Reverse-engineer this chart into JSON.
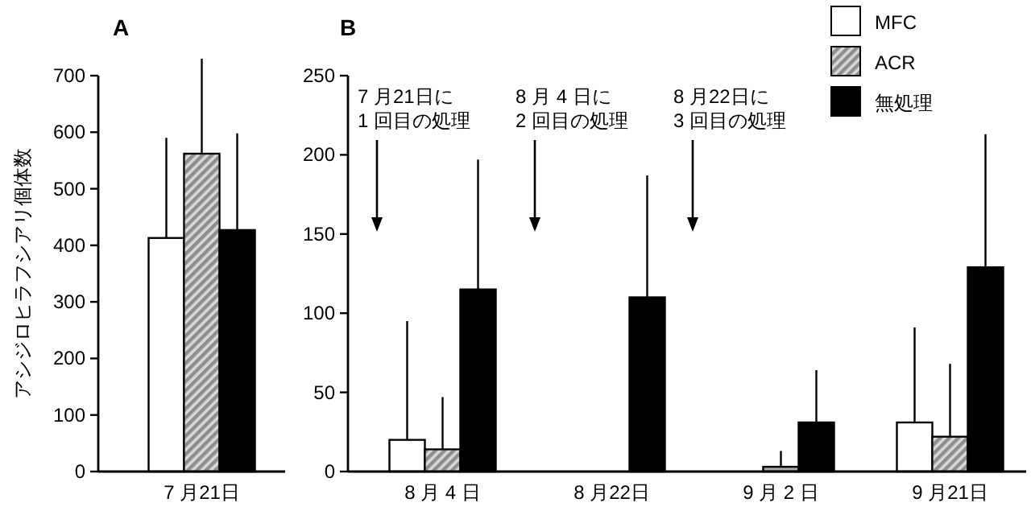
{
  "chart_data": [
    {
      "type": "bar",
      "title": "A",
      "ylabel": "アシジロヒラフシアリ個体数",
      "categories": [
        "7 月21日"
      ],
      "ylim": [
        0,
        700
      ],
      "yticks": [
        0,
        100,
        200,
        300,
        400,
        500,
        600,
        700
      ],
      "grid": false,
      "legend": false,
      "series": [
        {
          "color": "#ffffff",
          "values": [
            413
          ],
          "errors": [
            [
              413,
              590
            ]
          ]
        },
        {
          "color": "#aaaaaa",
          "values": [
            562
          ],
          "errors": [
            [
              562,
              730
            ]
          ]
        },
        {
          "color": "#000000",
          "values": [
            427
          ],
          "errors": [
            [
              427,
              598
            ]
          ]
        }
      ]
    },
    {
      "type": "bar",
      "title": "B",
      "categories": [
        "8 月 4 日",
        "8 月22日",
        "9 月 2 日",
        "9 月21日"
      ],
      "ylim": [
        0,
        250
      ],
      "yticks": [
        0,
        50,
        100,
        150,
        200,
        250
      ],
      "grid": false,
      "legend": "top right",
      "annotations": [
        "7 月21日に\n1 回目の処理",
        "8 月 4 日に\n2 回目の処理",
        "8 月22日に\n3 回目の処理"
      ],
      "series": [
        {
          "name": "MFC",
          "color": "#ffffff",
          "values": [
            20,
            0,
            0,
            31
          ],
          "errors": [
            [
              20,
              95
            ],
            null,
            null,
            [
              31,
              91
            ]
          ]
        },
        {
          "name": "ACR",
          "color": "#aaaaaa",
          "values": [
            14,
            0,
            3,
            22
          ],
          "errors": [
            [
              14,
              47
            ],
            null,
            [
              3,
              13
            ],
            [
              22,
              68
            ]
          ]
        },
        {
          "name": "無処理",
          "color": "#000000",
          "values": [
            115,
            110,
            31,
            129
          ],
          "errors": [
            [
              115,
              197
            ],
            [
              110,
              187
            ],
            [
              31,
              64
            ],
            [
              129,
              213
            ]
          ]
        }
      ]
    }
  ]
}
